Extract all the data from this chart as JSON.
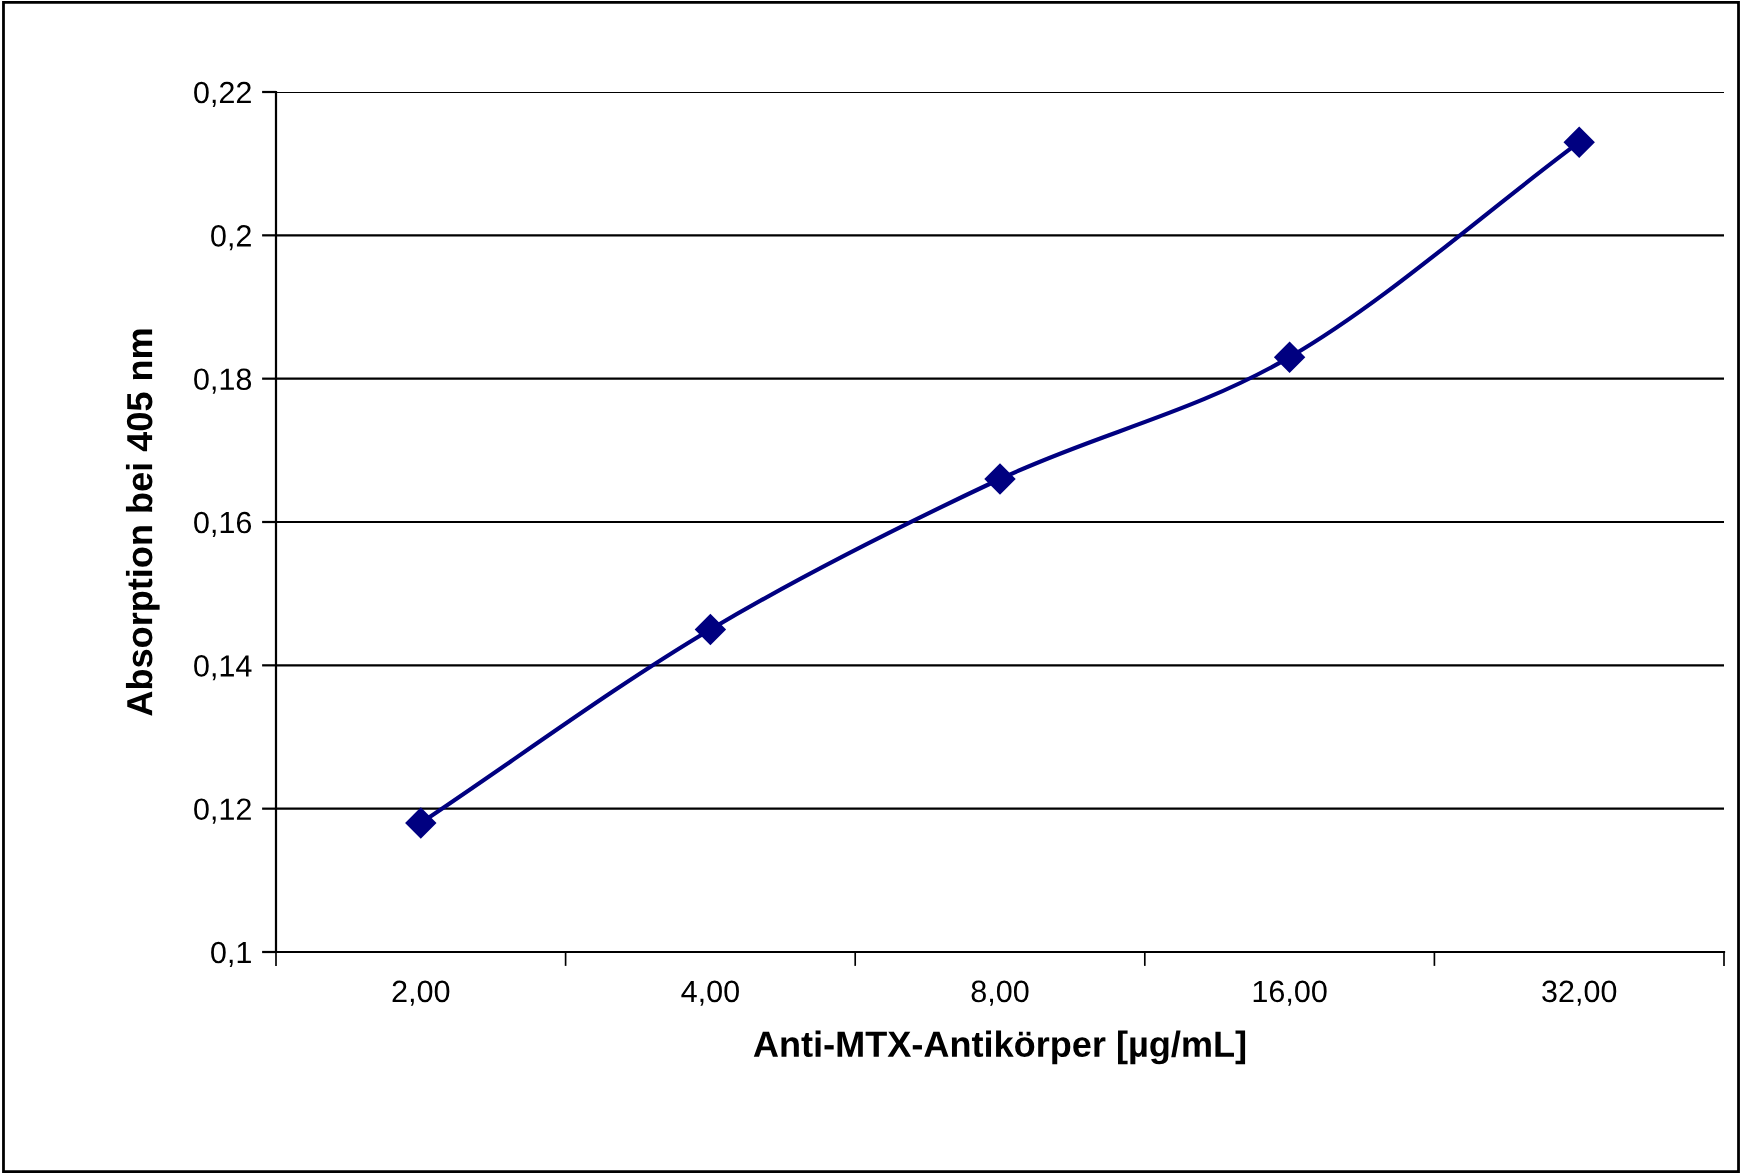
{
  "chart_data": {
    "type": "line",
    "xlabel": "Anti-MTX-Antikörper [µg/mL]",
    "ylabel": "Absorption bei 405 nm",
    "categories": [
      "2,00",
      "4,00",
      "8,00",
      "16,00",
      "32,00"
    ],
    "series": [
      {
        "color": "#000080",
        "values": [
          0.118,
          0.145,
          0.166,
          0.183,
          0.213
        ]
      }
    ],
    "ylim": [
      0.1,
      0.22
    ],
    "yticks": [
      {
        "value": 0.1,
        "label": "0,1"
      },
      {
        "value": 0.12,
        "label": "0,12"
      },
      {
        "value": 0.14,
        "label": "0,14"
      },
      {
        "value": 0.16,
        "label": "0,16"
      },
      {
        "value": 0.18,
        "label": "0,18"
      },
      {
        "value": 0.2,
        "label": "0,2"
      },
      {
        "value": 0.22,
        "label": "0,22"
      }
    ],
    "grid": "y",
    "marker": "diamond",
    "line_style": "solid",
    "legend": false
  }
}
